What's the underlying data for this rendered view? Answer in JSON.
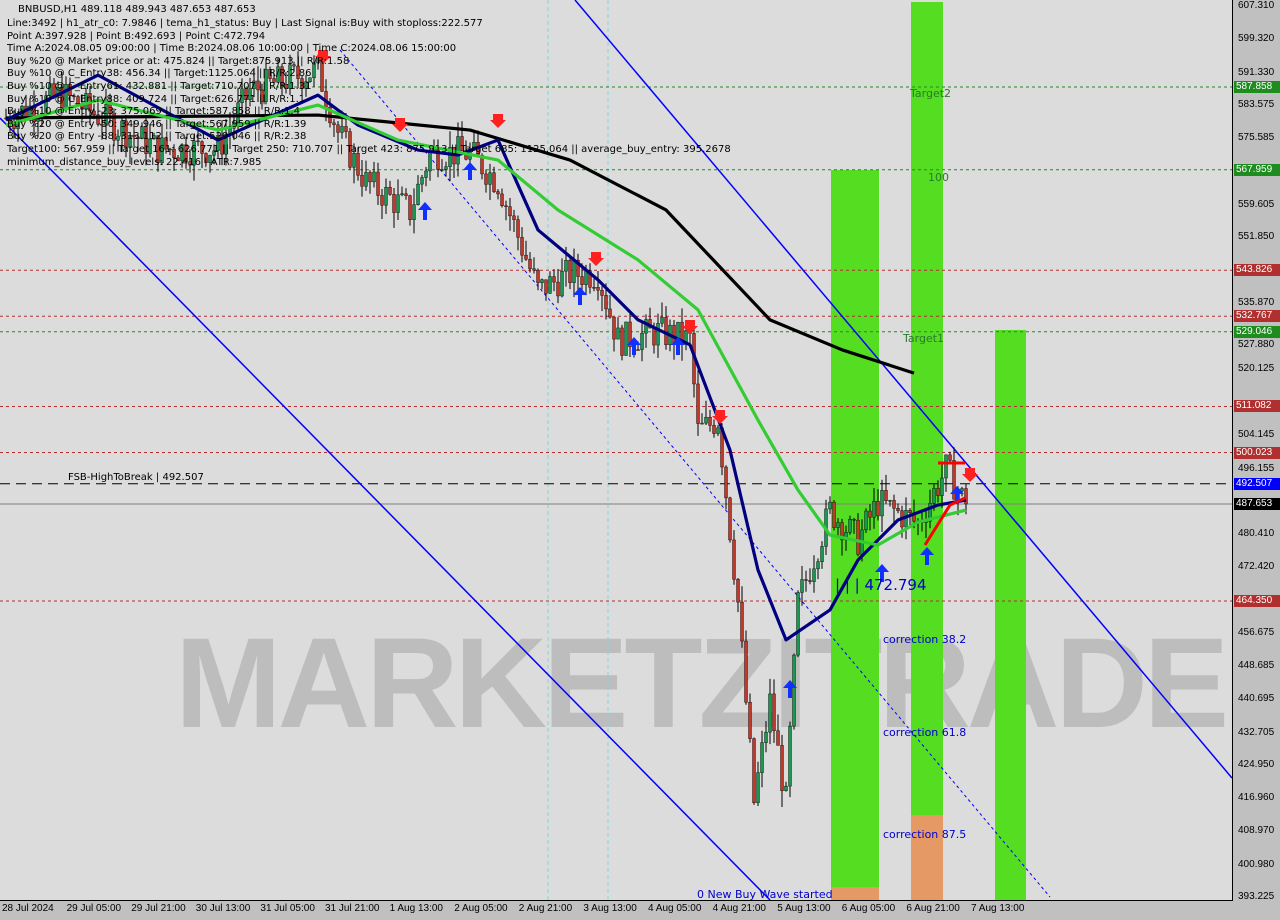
{
  "header": {
    "symbol_line": "BNBUSD,H1  489.118 489.943 487.653 487.653",
    "lines": [
      "Line:3492 | h1_atr_c0: 7.9846 | tema_h1_status: Buy | Last Signal is:Buy with stoploss:222.577",
      "Point A:397.928 | Point B:492.693 | Point C:472.794",
      "Time A:2024.08.05 09:00:00 | Time B:2024.08.06 10:00:00 | Time C:2024.08.06 15:00:00",
      "Buy %20 @ Market price or at: 475.824 || Target:875.913 || R/R:1.58",
      "Buy %10 @ C_Entry38: 456.34 || Target:1125.064 || R/R:2.86",
      "Buy %10 @ C_Entry61: 432.881 || Target:710.707 || R/R:1.31",
      "Buy %10 @ C_Entry88: 409.724 || Target:626.771 || R/R:1.1",
      "Buy %10 @ Entry -23: 375.069 || Target:587.858 || R/R:1.4",
      "Buy %20 @ Entry -50: 349.946 || Target:567.959 || R/R:1.39",
      "Buy %20 @ Entry -88: 313.112 || Target:529.046 || R/R:2.38",
      "Target100: 567.959 || Target 161: 626.771 || Target 250: 710.707 || Target 423: 875.913 || Target 685: 1125.064 || average_buy_entry: 395.2678",
      "minimum_distance_buy_levels: 22.416 | ATR:7.985"
    ]
  },
  "watermark": "MARKETZITRADE",
  "colors": {
    "bg": "#dcdcdc",
    "bull": "#1a9850",
    "bear": "#c0392b",
    "green_level": "#1e8c1e",
    "red_level": "#b03030",
    "blue": "#0000ff",
    "zone_green": "#55dd22",
    "zone_orange": "#e59a66"
  },
  "chart_data": {
    "type": "candlestick",
    "symbol": "BNBUSD",
    "timeframe": "H1",
    "ylim": [
      393.225,
      607.31
    ],
    "y_ticks": [
      "607.310",
      "599.320",
      "591.330",
      "583.575",
      "575.585",
      "559.605",
      "551.850",
      "535.870",
      "527.880",
      "520.125",
      "504.145",
      "496.155",
      "480.410",
      "472.420",
      "456.675",
      "448.685",
      "440.695",
      "432.705",
      "424.950",
      "416.960",
      "408.970",
      "400.980",
      "393.225"
    ],
    "x_ticks": [
      "28 Jul 2024",
      "29 Jul 05:00",
      "29 Jul 21:00",
      "30 Jul 13:00",
      "31 Jul 05:00",
      "31 Jul 21:00",
      "1 Aug 13:00",
      "2 Aug 05:00",
      "2 Aug 21:00",
      "3 Aug 13:00",
      "4 Aug 05:00",
      "4 Aug 21:00",
      "5 Aug 13:00",
      "6 Aug 05:00",
      "6 Aug 21:00",
      "7 Aug 13:00"
    ],
    "price_path": [
      [
        "2024-07-28 08:00",
        580.4
      ],
      [
        "2024-07-28 22:00",
        586
      ],
      [
        "2024-07-29 07:00",
        581
      ],
      [
        "2024-07-29 22:00",
        573
      ],
      [
        "2024-07-30 13:00",
        573
      ],
      [
        "2024-07-30 21:00",
        587
      ],
      [
        "2024-07-31 14:00",
        592
      ],
      [
        "2024-07-31 19:00",
        577
      ],
      [
        "2024-08-01 02:00",
        565
      ],
      [
        "2024-08-01 13:00",
        558
      ],
      [
        "2024-08-01 18:00",
        572
      ],
      [
        "2024-08-02 04:00",
        572
      ],
      [
        "2024-08-02 11:00",
        565
      ],
      [
        "2024-08-02 21:00",
        539
      ],
      [
        "2024-08-03 05:00",
        543
      ],
      [
        "2024-08-03 12:00",
        543
      ],
      [
        "2024-08-03 17:00",
        527
      ],
      [
        "2024-08-04 03:00",
        529
      ],
      [
        "2024-08-04 11:00",
        527
      ],
      [
        "2024-08-04 13:00",
        505
      ],
      [
        "2024-08-04 18:00",
        508
      ],
      [
        "2024-08-04 23:00",
        464
      ],
      [
        "2024-08-05 03:00",
        416
      ],
      [
        "2024-08-05 07:00",
        440
      ],
      [
        "2024-08-05 11:00",
        416
      ],
      [
        "2024-08-05 14:00",
        464
      ],
      [
        "2024-08-05 22:00",
        486
      ],
      [
        "2024-08-06 05:00",
        479
      ],
      [
        "2024-08-06 10:00",
        488
      ],
      [
        "2024-08-06 20:00",
        483
      ],
      [
        "2024-08-07 03:00",
        496
      ],
      [
        "2024-08-07 08:00",
        487.653
      ]
    ],
    "ma_series": [
      {
        "color": "#000000",
        "points": [
          [
            "2024-07-28 08:00",
            580.4
          ],
          [
            "2024-07-31 14:00",
            581.1
          ],
          [
            "2024-08-02 04:00",
            577.5
          ],
          [
            "2024-08-03 05:00",
            570.3
          ],
          [
            "2024-08-04 05:00",
            558.3
          ],
          [
            "2024-08-05 07:00",
            531.9
          ],
          [
            "2024-08-06 01:00",
            524.7
          ],
          [
            "2024-08-06 19:00",
            519.1
          ]
        ]
      },
      {
        "color": "#000080",
        "points": [
          [
            "2024-07-28 08:00",
            579.9
          ],
          [
            "2024-07-29 07:00",
            590.7
          ],
          [
            "2024-07-30 13:00",
            575.1
          ],
          [
            "2024-07-31 14:00",
            585.9
          ],
          [
            "2024-08-01 00:00",
            578.7
          ],
          [
            "2024-08-01 15:00",
            572.7
          ],
          [
            "2024-08-02 01:00",
            571.5
          ],
          [
            "2024-08-02 11:00",
            575.1
          ],
          [
            "2024-08-02 21:00",
            553.5
          ],
          [
            "2024-08-03 12:00",
            541.5
          ],
          [
            "2024-08-03 22:00",
            531.9
          ],
          [
            "2024-08-04 11:00",
            525.9
          ],
          [
            "2024-08-04 21:00",
            500.6
          ],
          [
            "2024-08-05 04:00",
            471.8
          ],
          [
            "2024-08-05 11:00",
            455.0
          ],
          [
            "2024-08-05 22:00",
            462.2
          ],
          [
            "2024-08-06 05:00",
            474.2
          ],
          [
            "2024-08-06 15:00",
            483.8
          ],
          [
            "2024-08-07 01:00",
            487.4
          ],
          [
            "2024-08-07 08:00",
            488.6
          ]
        ]
      },
      {
        "color": "#33cc33",
        "points": [
          [
            "2024-07-28 08:00",
            578.7
          ],
          [
            "2024-07-29 07:00",
            584.7
          ],
          [
            "2024-07-30 13:00",
            577.5
          ],
          [
            "2024-07-31 14:00",
            583.5
          ],
          [
            "2024-08-01 10:00",
            575.1
          ],
          [
            "2024-08-02 11:00",
            570.3
          ],
          [
            "2024-08-03 02:00",
            558.3
          ],
          [
            "2024-08-03 22:00",
            546.3
          ],
          [
            "2024-08-04 13:00",
            534.3
          ],
          [
            "2024-08-05 04:00",
            507.8
          ],
          [
            "2024-08-05 14:00",
            491.0
          ],
          [
            "2024-08-05 22:00",
            480.2
          ],
          [
            "2024-08-06 10:00",
            477.8
          ],
          [
            "2024-08-06 20:00",
            483.3
          ],
          [
            "2024-08-07 08:00",
            486.2
          ]
        ]
      }
    ],
    "levels": [
      {
        "price": 587.858,
        "label": "587.858",
        "color": "#1e8c1e",
        "style": "dotted"
      },
      {
        "price": 567.959,
        "label": "567.959",
        "color": "#1e8c1e",
        "style": "dotted"
      },
      {
        "price": 543.826,
        "label": "543.826",
        "color": "#b03030",
        "style": "dotted"
      },
      {
        "price": 532.767,
        "label": "532.767",
        "color": "#b03030",
        "style": "dotted"
      },
      {
        "price": 529.046,
        "label": "529.046",
        "color": "#1e8c1e",
        "style": "dotted"
      },
      {
        "price": 511.082,
        "label": "511.082",
        "color": "#b03030",
        "style": "dotted"
      },
      {
        "price": 500.023,
        "label": "500.023",
        "color": "#b03030",
        "style": "dotted"
      },
      {
        "price": 492.507,
        "label": "492.507",
        "color": "#0000ff",
        "style": "dashed",
        "line_color": "#000000"
      },
      {
        "price": 487.653,
        "label": "487.653",
        "color": "#000000",
        "style": "solid",
        "line_color": "#808080"
      },
      {
        "price": 464.35,
        "label": "464.350",
        "color": "#b03030",
        "style": "dotted"
      }
    ],
    "annotations": {
      "target2": "Target2",
      "t100": "100",
      "target1": "Target1",
      "fsb": "FSB-HighToBreak | 492.507",
      "point_c": "| | | 472.794",
      "c382": "correction 38.2",
      "c618": "correction 61.8",
      "c875": "correction 87.5",
      "wave": "0 New Buy Wave started"
    }
  }
}
